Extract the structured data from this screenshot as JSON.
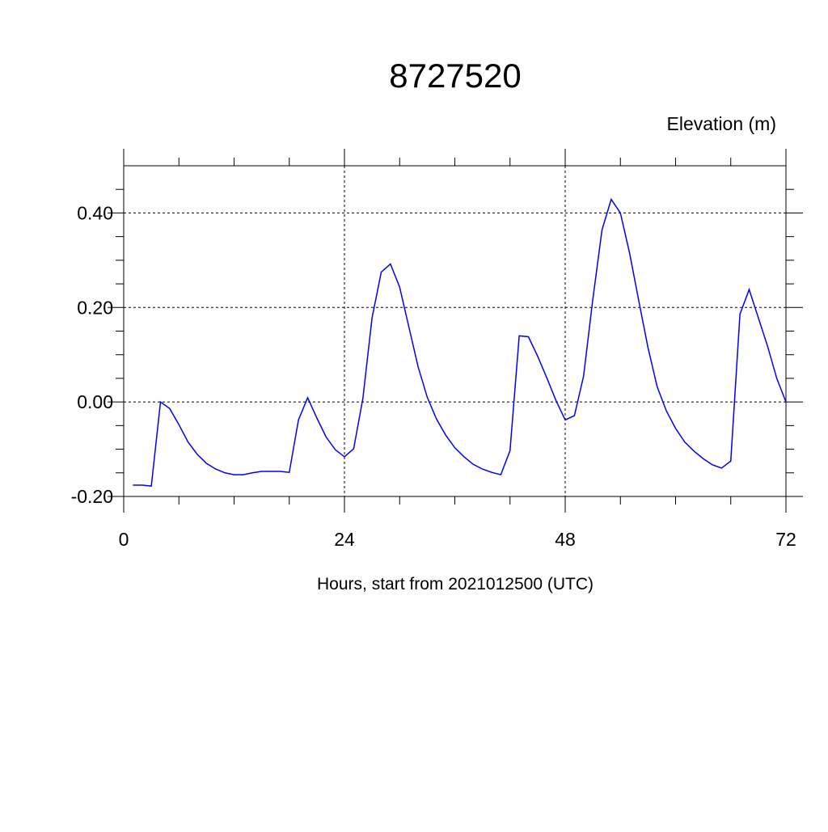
{
  "chart_data": {
    "type": "line",
    "title": "8727520",
    "ylabel": "Elevation (m)",
    "xlabel": "Hours, start from 2021012500 (UTC)",
    "x": [
      1,
      2,
      3,
      4,
      5,
      6,
      7,
      8,
      9,
      10,
      11,
      12,
      13,
      14,
      15,
      16,
      17,
      18,
      19,
      20,
      21,
      22,
      23,
      24,
      25,
      26,
      27,
      28,
      29,
      30,
      31,
      32,
      33,
      34,
      35,
      36,
      37,
      38,
      39,
      40,
      41,
      42,
      43,
      44,
      45,
      46,
      47,
      48,
      49,
      50,
      51,
      52,
      53,
      54,
      55,
      56,
      57,
      58,
      59,
      60,
      61,
      62,
      63,
      64,
      65,
      66,
      67,
      68,
      69,
      70,
      71,
      72
    ],
    "series": [
      {
        "color": "#0000ff",
        "values": [
          -0.176,
          -0.176,
          -0.178,
          0.0,
          -0.014,
          -0.048,
          -0.085,
          -0.111,
          -0.13,
          -0.142,
          -0.15,
          -0.154,
          -0.154,
          -0.15,
          -0.147,
          -0.147,
          -0.147,
          -0.149,
          -0.038,
          0.009,
          -0.034,
          -0.074,
          -0.101,
          -0.116,
          -0.099,
          0.007,
          0.178,
          0.275,
          0.292,
          0.243,
          0.159,
          0.075,
          0.01,
          -0.036,
          -0.07,
          -0.097,
          -0.116,
          -0.132,
          -0.142,
          -0.149,
          -0.154,
          -0.103,
          0.14,
          0.138,
          0.097,
          0.051,
          0.003,
          -0.038,
          -0.029,
          0.055,
          0.217,
          0.364,
          0.429,
          0.4,
          0.315,
          0.214,
          0.115,
          0.032,
          -0.019,
          -0.056,
          -0.085,
          -0.104,
          -0.12,
          -0.133,
          -0.14,
          -0.125,
          0.186,
          0.238,
          0.178,
          0.118,
          0.05,
          0.0
        ]
      }
    ],
    "xlim": [
      0,
      72
    ],
    "xticks": [
      0,
      24,
      48,
      72
    ],
    "xminorticks": [
      6,
      12,
      18,
      30,
      36,
      42,
      54,
      60,
      66
    ],
    "ylim": [
      -0.2,
      0.5
    ],
    "yticks": [
      {
        "value": -0.2,
        "label": "-0.20"
      },
      {
        "value": 0,
        "label": "0.00"
      },
      {
        "value": 0.2,
        "label": "0.20"
      },
      {
        "value": 0.4,
        "label": "0.40"
      }
    ],
    "yminorticks": [
      -0.15,
      -0.1,
      -0.05,
      0.05,
      0.1,
      0.15,
      0.25,
      0.3,
      0.35,
      0.45
    ],
    "grid": true
  }
}
